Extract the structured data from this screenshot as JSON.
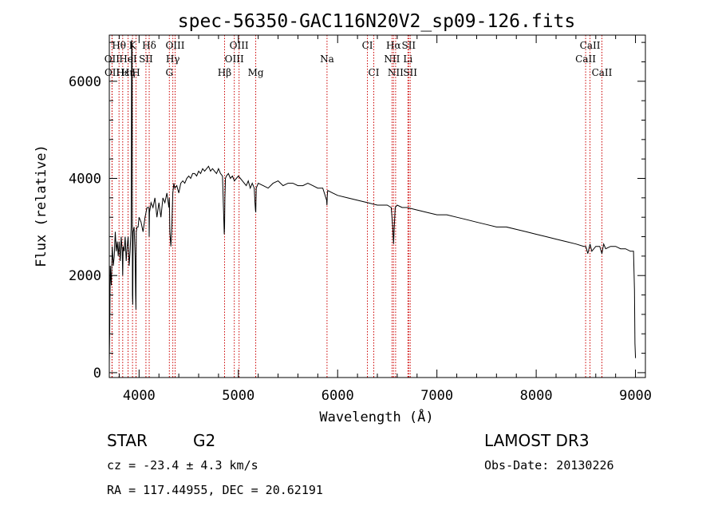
{
  "chart_data": {
    "type": "line",
    "title": "spec-56350-GAC116N20V2_sp09-126.fits",
    "xlabel": "Wavelength (Å)",
    "ylabel": "Flux (relative)",
    "xlim": [
      3700,
      9100
    ],
    "ylim": [
      -100,
      6950
    ],
    "x_ticks": [
      4000,
      5000,
      6000,
      7000,
      8000,
      9000
    ],
    "x_tick_labels": [
      "4000",
      "5000",
      "6000",
      "7000",
      "8000",
      "9000"
    ],
    "y_ticks": [
      0,
      2000,
      4000,
      6000
    ],
    "y_tick_labels": [
      "0",
      "2000",
      "4000",
      "6000"
    ],
    "x_minor_step": 200,
    "y_minor_step": 400,
    "spectrum": {
      "x": [
        3700,
        3705,
        3710,
        3720,
        3730,
        3740,
        3750,
        3760,
        3770,
        3780,
        3790,
        3800,
        3810,
        3820,
        3830,
        3835,
        3840,
        3850,
        3860,
        3870,
        3880,
        3890,
        3900,
        3910,
        3920,
        3925,
        3930,
        3933,
        3936,
        3940,
        3950,
        3960,
        3965,
        3968,
        3972,
        3980,
        3990,
        4000,
        4020,
        4040,
        4060,
        4080,
        4100,
        4102,
        4105,
        4120,
        4140,
        4160,
        4180,
        4200,
        4220,
        4240,
        4260,
        4280,
        4300,
        4305,
        4310,
        4320,
        4330,
        4340,
        4345,
        4350,
        4360,
        4380,
        4400,
        4420,
        4440,
        4460,
        4480,
        4500,
        4520,
        4540,
        4560,
        4580,
        4600,
        4620,
        4640,
        4660,
        4680,
        4700,
        4720,
        4740,
        4760,
        4780,
        4800,
        4820,
        4840,
        4850,
        4858,
        4861,
        4864,
        4870,
        4880,
        4900,
        4920,
        4940,
        4960,
        4980,
        5000,
        5020,
        5040,
        5060,
        5080,
        5100,
        5120,
        5140,
        5160,
        5167,
        5172,
        5175,
        5180,
        5200,
        5250,
        5300,
        5350,
        5400,
        5450,
        5500,
        5550,
        5600,
        5650,
        5700,
        5750,
        5800,
        5850,
        5889,
        5892,
        5896,
        5900,
        5950,
        6000,
        6100,
        6200,
        6300,
        6400,
        6500,
        6540,
        6555,
        6563,
        6570,
        6580,
        6600,
        6650,
        6700,
        6800,
        6900,
        7000,
        7100,
        7200,
        7300,
        7400,
        7500,
        7600,
        7700,
        7800,
        7900,
        8000,
        8100,
        8200,
        8300,
        8400,
        8480,
        8500,
        8520,
        8542,
        8560,
        8600,
        8640,
        8662,
        8680,
        8700,
        8750,
        8800,
        8850,
        8900,
        8950,
        8980,
        8990,
        8995,
        9000
      ],
      "flux": [
        200,
        1000,
        2200,
        1800,
        2600,
        2200,
        2400,
        2900,
        2500,
        2700,
        2400,
        2700,
        2300,
        2800,
        2500,
        2000,
        2600,
        2500,
        2800,
        2300,
        2600,
        2800,
        2200,
        2500,
        3000,
        6850,
        6600,
        1600,
        1400,
        2900,
        3000,
        2400,
        1600,
        1300,
        2900,
        3000,
        3000,
        3200,
        3100,
        2900,
        3200,
        3400,
        3400,
        2800,
        3300,
        3500,
        3400,
        3600,
        3200,
        3500,
        3200,
        3600,
        3500,
        3700,
        3400,
        3600,
        2900,
        2600,
        3000,
        3700,
        3800,
        3900,
        3800,
        3850,
        3700,
        3900,
        3950,
        3900,
        4000,
        4050,
        4000,
        4100,
        4100,
        4050,
        4150,
        4100,
        4200,
        4150,
        4200,
        4250,
        4150,
        4200,
        4150,
        4100,
        4200,
        4100,
        4050,
        3400,
        2850,
        3000,
        3600,
        4000,
        4050,
        4100,
        4000,
        4050,
        3950,
        4000,
        4050,
        4000,
        3950,
        3900,
        3850,
        3950,
        3800,
        3900,
        3800,
        3500,
        3350,
        3300,
        3800,
        3900,
        3850,
        3800,
        3900,
        3950,
        3850,
        3900,
        3900,
        3850,
        3850,
        3900,
        3850,
        3800,
        3800,
        3550,
        3450,
        3650,
        3750,
        3700,
        3650,
        3600,
        3550,
        3500,
        3450,
        3450,
        3400,
        3000,
        2650,
        3000,
        3400,
        3450,
        3400,
        3400,
        3350,
        3300,
        3250,
        3250,
        3200,
        3150,
        3100,
        3050,
        3000,
        3000,
        2950,
        2900,
        2850,
        2800,
        2750,
        2700,
        2650,
        2600,
        2600,
        2450,
        2650,
        2500,
        2600,
        2600,
        2450,
        2650,
        2550,
        2600,
        2600,
        2550,
        2550,
        2500,
        2500,
        1700,
        600,
        300
      ]
    },
    "line_marks": [
      {
        "name": "Hθ",
        "x": 3798
      },
      {
        "name": "K",
        "x": 3934
      },
      {
        "name": "Hδ",
        "x": 4102
      },
      {
        "name": "OIII",
        "x": 4363
      },
      {
        "name": "OIII",
        "x": 5007
      },
      {
        "name": "CI",
        "x": 6300
      },
      {
        "name": "Hα",
        "x": 6563
      },
      {
        "name": "SII",
        "x": 6716
      },
      {
        "name": "CaII",
        "x": 8542
      },
      {
        "name": "OII",
        "x": 3727
      },
      {
        "name": "HeI",
        "x": 3889
      },
      {
        "name": "SII",
        "x": 4069
      },
      {
        "name": "Hγ",
        "x": 4340
      },
      {
        "name": "OIII",
        "x": 4959
      },
      {
        "name": "Na",
        "x": 5893
      },
      {
        "name": "NII",
        "x": 6548
      },
      {
        "name": "Li",
        "x": 6708
      },
      {
        "name": "CaII",
        "x": 8498
      },
      {
        "name": "OII",
        "x": 3729
      },
      {
        "name": "Hε",
        "x": 3835
      },
      {
        "name": "Hη",
        "x": 3890
      },
      {
        "name": "H",
        "x": 3969
      },
      {
        "name": "G",
        "x": 4305
      },
      {
        "name": "Hβ",
        "x": 4861
      },
      {
        "name": "Mg",
        "x": 5175
      },
      {
        "name": "CI",
        "x": 6364
      },
      {
        "name": "NII",
        "x": 6584
      },
      {
        "name": "SII",
        "x": 6731
      },
      {
        "name": "CaII",
        "x": 8662
      }
    ]
  },
  "info": {
    "class": "STAR",
    "subclass": "G2",
    "survey": "LAMOST DR3",
    "redshift": "cz = -23.4 ± 4.3 km/s",
    "obs_date": "Obs-Date: 20130226",
    "coords": "RA = 117.44955, DEC =  20.62191"
  }
}
